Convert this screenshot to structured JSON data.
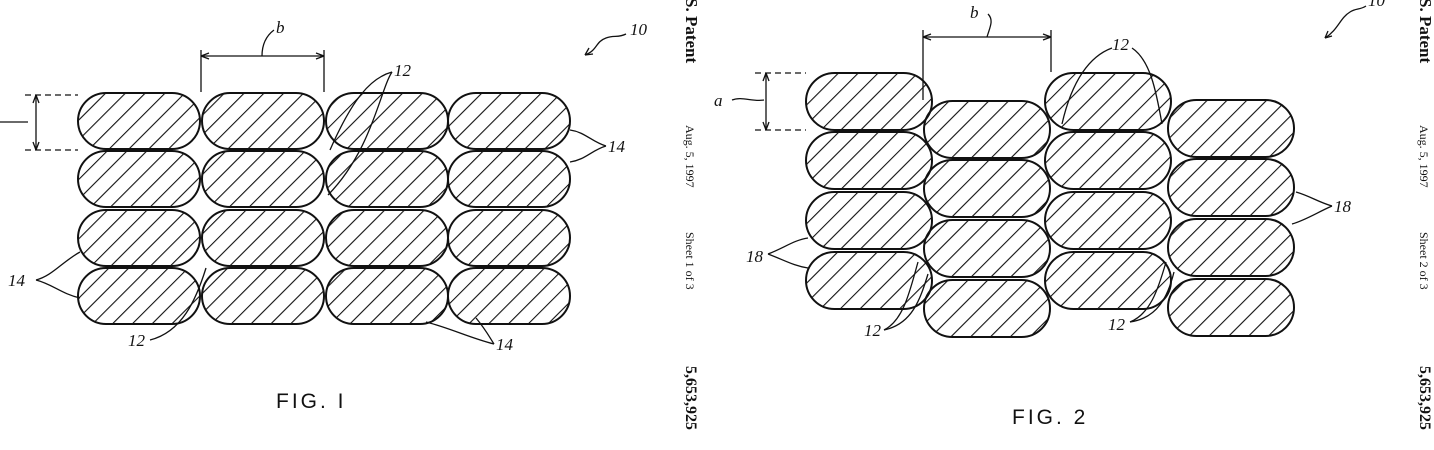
{
  "figures": [
    {
      "label": "FIG. I",
      "refs": {
        "assembly": "10",
        "width_dim": "b",
        "gap": "12",
        "strand_right": "14",
        "strand_left": "14",
        "gap_bottom": "12",
        "strand_bottom": "14"
      }
    },
    {
      "label": "FIG. 2",
      "refs": {
        "assembly": "10",
        "width_dim": "b",
        "height_dim": "a",
        "gap_top": "12",
        "strand_right": "18",
        "strand_left": "18",
        "gap_bottom_left": "12",
        "gap_bottom_right": "12"
      }
    }
  ],
  "sheets": [
    {
      "title": "S. Patent",
      "date": "Aug. 5, 1997",
      "sheet": "Sheet 1 of 3",
      "number": "5,653,925"
    },
    {
      "title": "S. Patent",
      "date": "Aug. 5, 1997",
      "sheet": "Sheet 2 of 3",
      "number": "5,653,925"
    }
  ]
}
